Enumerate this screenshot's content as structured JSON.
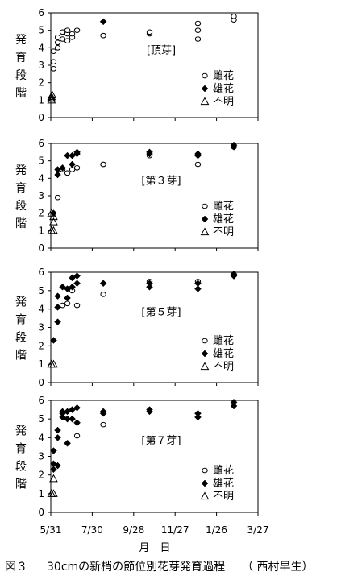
{
  "chart_data": [
    {
      "type": "scatter",
      "title": "",
      "panel_label": "[頂芽]",
      "ylabel": "発育段階",
      "ylim": [
        0,
        6
      ],
      "yticks": [
        "0",
        "1",
        "2",
        "3",
        "4",
        "5",
        "6"
      ],
      "legend_placement": "bottom-right",
      "series": [
        {
          "name": "雌花",
          "marker": "open-circle",
          "points": [
            [
              "2003-06-04",
              2.8
            ],
            [
              "2003-06-04",
              3.2
            ],
            [
              "2003-06-04",
              3.8
            ],
            [
              "2003-06-10",
              4.0
            ],
            [
              "2003-06-10",
              4.3
            ],
            [
              "2003-06-10",
              4.6
            ],
            [
              "2003-06-17",
              4.9
            ],
            [
              "2003-06-17",
              4.5
            ],
            [
              "2003-06-24",
              4.4
            ],
            [
              "2003-06-24",
              4.8
            ],
            [
              "2003-06-24",
              5.0
            ],
            [
              "2003-07-01",
              4.6
            ],
            [
              "2003-07-01",
              4.8
            ],
            [
              "2003-07-08",
              5.0
            ],
            [
              "2003-08-15",
              4.7
            ],
            [
              "2003-08-15",
              4.7
            ],
            [
              "2003-10-21",
              4.8
            ],
            [
              "2003-10-21",
              4.9
            ],
            [
              "2003-12-30",
              4.5
            ],
            [
              "2003-12-30",
              5.0
            ],
            [
              "2003-12-30",
              5.4
            ],
            [
              "2004-02-20",
              5.6
            ],
            [
              "2004-02-20",
              5.8
            ]
          ]
        },
        {
          "name": "雄花",
          "marker": "filled-diamond",
          "points": [
            [
              "2003-08-15",
              5.5
            ]
          ]
        },
        {
          "name": "不明",
          "marker": "open-triangle",
          "points": [
            [
              "2003-06-01",
              1.0
            ],
            [
              "2003-06-01",
              1.1
            ],
            [
              "2003-06-01",
              1.2
            ],
            [
              "2003-06-02",
              1.3
            ]
          ]
        }
      ]
    },
    {
      "type": "scatter",
      "title": "",
      "panel_label": "[第３芽]",
      "ylabel": "発育段階",
      "ylim": [
        0,
        6
      ],
      "yticks": [
        "0",
        "1",
        "2",
        "3",
        "4",
        "5",
        "6"
      ],
      "legend_placement": "bottom-right",
      "series": [
        {
          "name": "雌花",
          "marker": "open-circle",
          "points": [
            [
              "2003-06-10",
              2.9
            ],
            [
              "2003-06-17",
              4.5
            ],
            [
              "2003-06-24",
              4.3
            ],
            [
              "2003-07-01",
              4.5
            ],
            [
              "2003-07-08",
              4.6
            ],
            [
              "2003-08-15",
              4.8
            ],
            [
              "2003-08-15",
              4.8
            ],
            [
              "2003-10-21",
              5.3
            ],
            [
              "2003-12-30",
              4.8
            ],
            [
              "2004-02-20",
              5.8
            ]
          ]
        },
        {
          "name": "雄花",
          "marker": "filled-diamond",
          "points": [
            [
              "2003-06-04",
              2.0
            ],
            [
              "2003-06-10",
              4.5
            ],
            [
              "2003-06-10",
              4.2
            ],
            [
              "2003-06-17",
              4.6
            ],
            [
              "2003-06-24",
              5.3
            ],
            [
              "2003-07-01",
              5.3
            ],
            [
              "2003-07-01",
              4.8
            ],
            [
              "2003-07-08",
              5.5
            ],
            [
              "2003-07-08",
              5.4
            ],
            [
              "2003-10-21",
              5.4
            ],
            [
              "2003-10-21",
              5.5
            ],
            [
              "2003-12-30",
              5.3
            ],
            [
              "2003-12-30",
              5.4
            ],
            [
              "2004-02-20",
              5.9
            ],
            [
              "2004-02-20",
              5.8
            ]
          ]
        },
        {
          "name": "不明",
          "marker": "open-triangle",
          "points": [
            [
              "2003-06-01",
              2.0
            ],
            [
              "2003-06-01",
              1.0
            ],
            [
              "2003-06-04",
              1.0
            ],
            [
              "2003-06-04",
              1.5
            ],
            [
              "2003-06-04",
              1.8
            ]
          ]
        }
      ]
    },
    {
      "type": "scatter",
      "title": "",
      "panel_label": "[第５芽]",
      "ylabel": "発育段階",
      "ylim": [
        0,
        6
      ],
      "yticks": [
        "0",
        "1",
        "2",
        "3",
        "4",
        "5",
        "6"
      ],
      "legend_placement": "bottom-right",
      "series": [
        {
          "name": "雌花",
          "marker": "open-circle",
          "points": [
            [
              "2003-06-17",
              4.2
            ],
            [
              "2003-06-24",
              4.3
            ],
            [
              "2003-07-01",
              5.0
            ],
            [
              "2003-07-08",
              4.2
            ],
            [
              "2003-08-15",
              4.8
            ],
            [
              "2003-10-21",
              5.5
            ],
            [
              "2003-12-30",
              5.5
            ]
          ]
        },
        {
          "name": "雄花",
          "marker": "filled-diamond",
          "points": [
            [
              "2003-06-04",
              2.3
            ],
            [
              "2003-06-10",
              3.3
            ],
            [
              "2003-06-10",
              4.1
            ],
            [
              "2003-06-10",
              4.7
            ],
            [
              "2003-06-17",
              5.2
            ],
            [
              "2003-06-24",
              4.6
            ],
            [
              "2003-06-24",
              5.1
            ],
            [
              "2003-07-01",
              5.2
            ],
            [
              "2003-07-01",
              5.7
            ],
            [
              "2003-07-08",
              5.4
            ],
            [
              "2003-07-08",
              5.8
            ],
            [
              "2003-08-15",
              5.4
            ],
            [
              "2003-10-21",
              5.2
            ],
            [
              "2003-10-21",
              5.4
            ],
            [
              "2003-12-30",
              5.1
            ],
            [
              "2003-12-30",
              5.4
            ],
            [
              "2004-02-20",
              5.8
            ],
            [
              "2004-02-20",
              5.9
            ]
          ]
        },
        {
          "name": "不明",
          "marker": "open-triangle",
          "points": [
            [
              "2003-06-01",
              1.0
            ],
            [
              "2003-06-04",
              1.0
            ]
          ]
        }
      ]
    },
    {
      "type": "scatter",
      "title": "",
      "panel_label": "[第７芽]",
      "ylabel": "発育段階",
      "ylim": [
        0,
        6
      ],
      "yticks": [
        "0",
        "1",
        "2",
        "3",
        "4",
        "5",
        "6"
      ],
      "xlabel": "月　日",
      "xticks": [
        "5/31",
        "7/30",
        "9/28",
        "11/27",
        "1/26",
        "3/27"
      ],
      "legend_placement": "bottom-right",
      "series": [
        {
          "name": "雌花",
          "marker": "open-circle",
          "points": [
            [
              "2003-07-08",
              4.1
            ],
            [
              "2003-08-15",
              4.7
            ]
          ]
        },
        {
          "name": "雄花",
          "marker": "filled-diamond",
          "points": [
            [
              "2003-06-04",
              2.3
            ],
            [
              "2003-06-04",
              2.6
            ],
            [
              "2003-06-04",
              3.3
            ],
            [
              "2003-06-10",
              2.5
            ],
            [
              "2003-06-10",
              4.0
            ],
            [
              "2003-06-10",
              4.4
            ],
            [
              "2003-06-17",
              5.1
            ],
            [
              "2003-06-17",
              5.3
            ],
            [
              "2003-06-17",
              5.4
            ],
            [
              "2003-06-24",
              3.7
            ],
            [
              "2003-06-24",
              5.0
            ],
            [
              "2003-06-24",
              5.4
            ],
            [
              "2003-07-01",
              5.0
            ],
            [
              "2003-07-01",
              5.5
            ],
            [
              "2003-07-08",
              4.8
            ],
            [
              "2003-07-08",
              5.6
            ],
            [
              "2003-08-15",
              5.3
            ],
            [
              "2003-08-15",
              5.4
            ],
            [
              "2003-10-21",
              5.4
            ],
            [
              "2003-10-21",
              5.5
            ],
            [
              "2003-12-30",
              5.1
            ],
            [
              "2003-12-30",
              5.3
            ],
            [
              "2004-02-20",
              5.7
            ],
            [
              "2004-02-20",
              5.9
            ]
          ]
        },
        {
          "name": "不明",
          "marker": "open-triangle",
          "points": [
            [
              "2003-06-01",
              1.0
            ],
            [
              "2003-06-04",
              1.0
            ],
            [
              "2003-06-04",
              1.8
            ]
          ]
        }
      ]
    }
  ],
  "caption": {
    "figure_number": "図３",
    "text": "30cmの新梢の節位別花芽発育過程",
    "variety": "（ 西村早生）"
  }
}
